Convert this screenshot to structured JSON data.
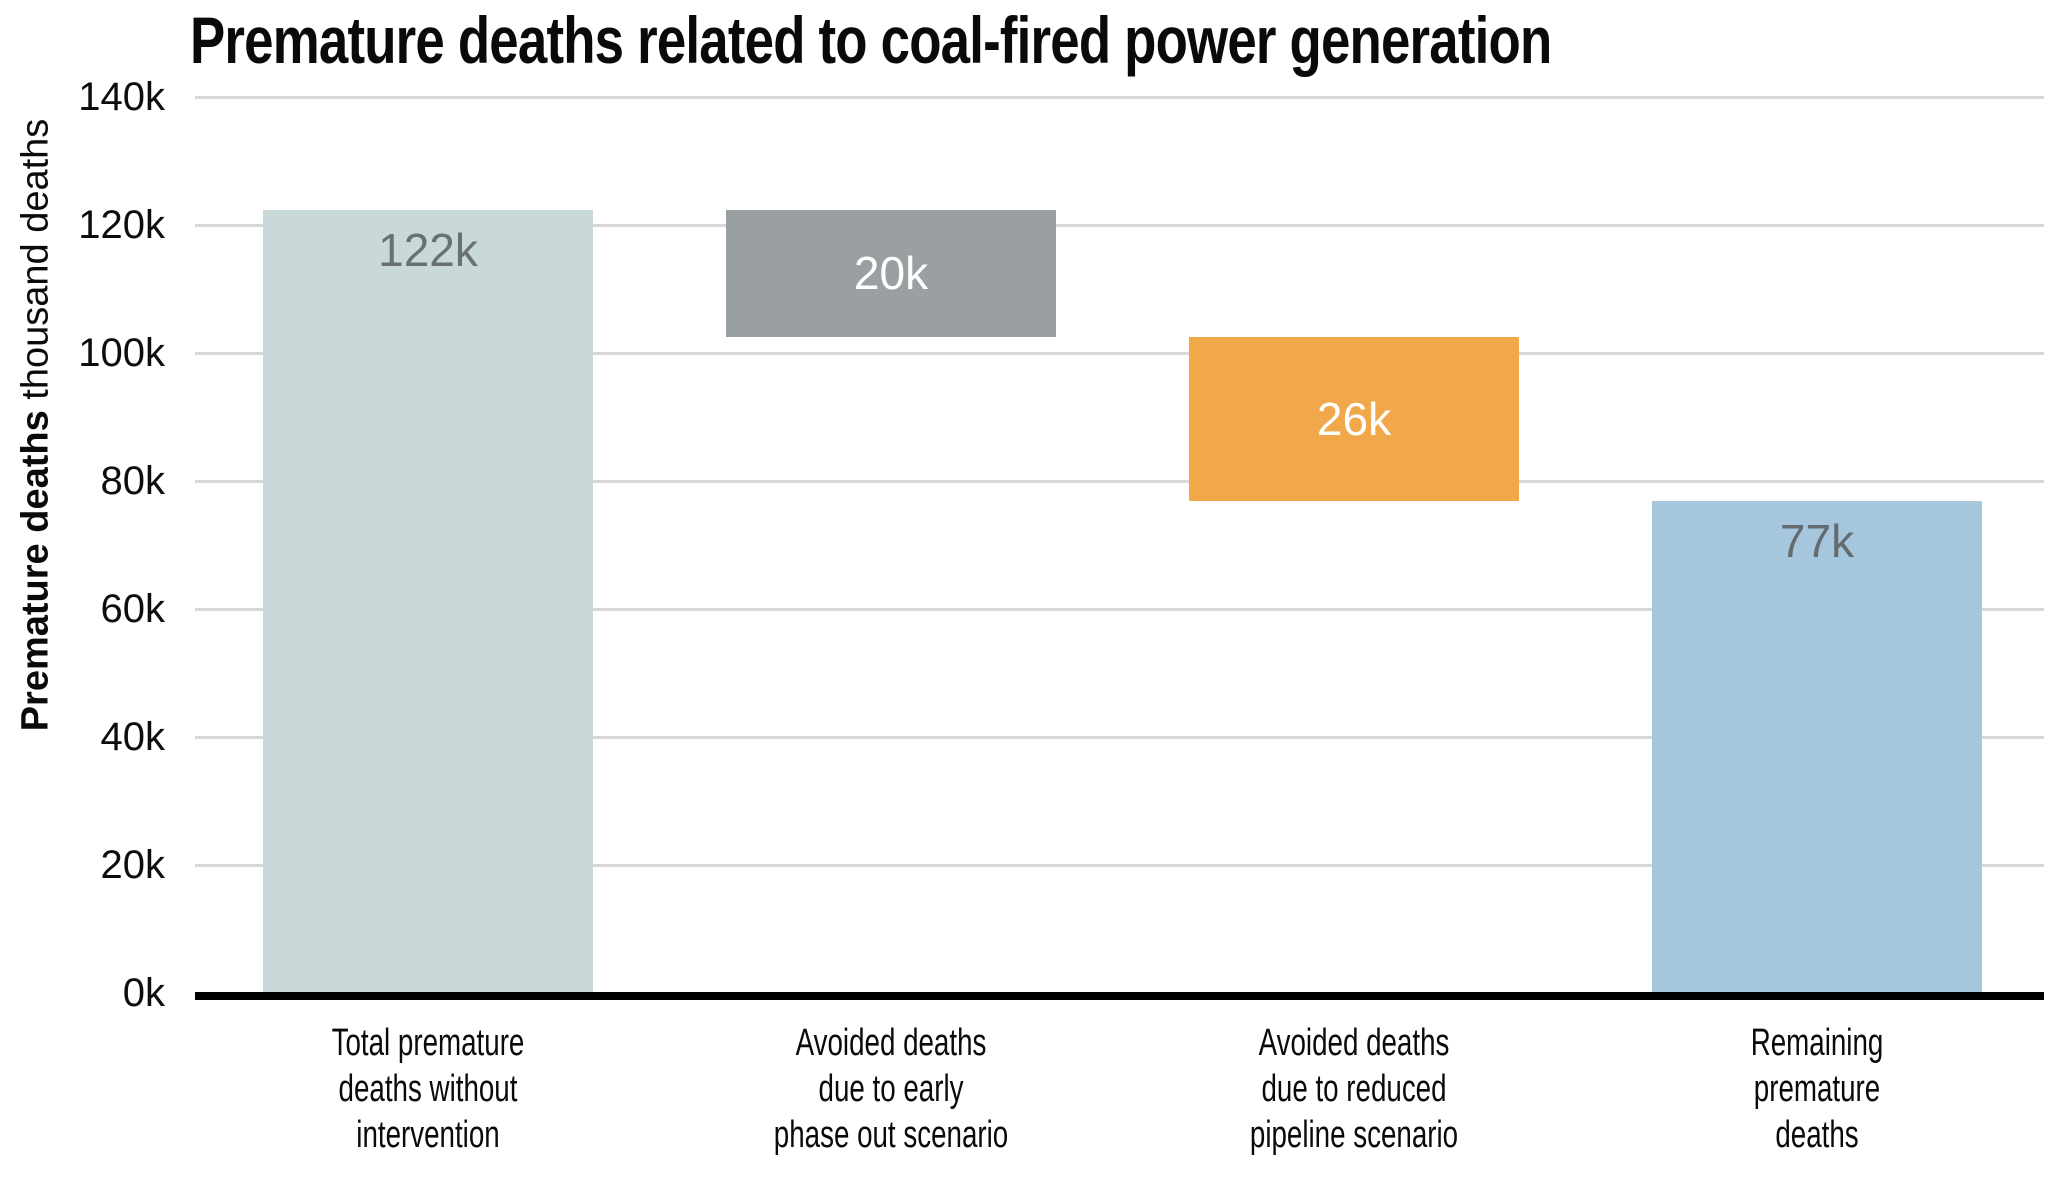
{
  "title": "Premature deaths related to coal-fired power generation",
  "y_axis": {
    "label_bold": "Premature deaths",
    "label_regular": " thousand deaths",
    "ticks": [
      {
        "label": "0k",
        "value": 0
      },
      {
        "label": "20k",
        "value": 20
      },
      {
        "label": "40k",
        "value": 40
      },
      {
        "label": "60k",
        "value": 60
      },
      {
        "label": "80k",
        "value": 80
      },
      {
        "label": "100k",
        "value": 100
      },
      {
        "label": "120k",
        "value": 120
      },
      {
        "label": "140k",
        "value": 140
      }
    ]
  },
  "colors": {
    "gridline": "#d8d8d8",
    "axis_line": "#000000",
    "text": "#0a0a0a"
  },
  "chart_data": {
    "type": "bar",
    "subtype": "waterfall",
    "title": "Premature deaths related to coal-fired power generation",
    "ylabel": "Premature deaths thousand deaths",
    "ylim": [
      0,
      140
    ],
    "ytick_interval": 20,
    "grid": "horizontal",
    "legend": "none",
    "categories": [
      "Total premature deaths without intervention",
      "Avoided deaths due to early phase out scenario",
      "Avoided deaths due to reduced pipeline scenario",
      "Remaining premature deaths"
    ],
    "values": [
      122,
      -20,
      -26,
      77
    ],
    "bars": [
      {
        "category_lines": [
          "Total premature",
          "deaths without",
          "intervention"
        ],
        "value": 122,
        "label": "122k",
        "plot_base": 0,
        "plot_top": 122.4,
        "color": "#c9d8d9",
        "label_color": "#6a7173",
        "label_position": "inside-top"
      },
      {
        "category_lines": [
          "Avoided deaths",
          "due to early",
          "phase out scenario"
        ],
        "value": -20,
        "label": "20k",
        "plot_base": 102.5,
        "plot_top": 122.4,
        "color": "#9aa0a2",
        "label_color": "#ffffff",
        "label_position": "center"
      },
      {
        "category_lines": [
          "Avoided deaths",
          "due to reduced",
          "pipeline scenario"
        ],
        "value": -26,
        "label": "26k",
        "plot_base": 76.8,
        "plot_top": 102.5,
        "color": "#f0a84b",
        "label_color": "#ffffff",
        "label_position": "center"
      },
      {
        "category_lines": [
          "Remaining",
          "premature",
          "deaths"
        ],
        "value": 77,
        "label": "77k",
        "plot_base": 0,
        "plot_top": 76.8,
        "color": "#a6c6dd",
        "label_color": "#646b6e",
        "label_position": "inside-top"
      }
    ]
  }
}
